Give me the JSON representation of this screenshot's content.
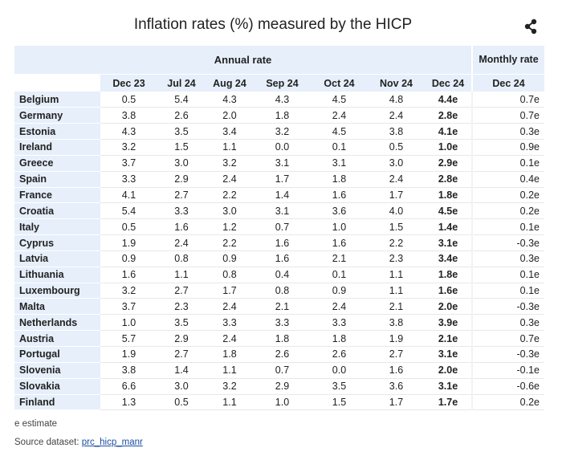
{
  "title": "Inflation rates (%) measured by the HICP",
  "share_icon": "share-icon",
  "header": {
    "annual_rate": "Annual rate",
    "monthly_rate": "Monthly rate",
    "columns": [
      "Dec 23",
      "Jul 24",
      "Aug 24",
      "Sep 24",
      "Oct 24",
      "Nov 24",
      "Dec 24"
    ],
    "monthly_column": "Dec 24"
  },
  "rows": [
    {
      "country": "Belgium",
      "values": [
        "0.5",
        "5.4",
        "4.3",
        "4.3",
        "4.5",
        "4.8",
        "4.4e"
      ],
      "monthly": "0.7e"
    },
    {
      "country": "Germany",
      "values": [
        "3.8",
        "2.6",
        "2.0",
        "1.8",
        "2.4",
        "2.4",
        "2.8e"
      ],
      "monthly": "0.7e"
    },
    {
      "country": "Estonia",
      "values": [
        "4.3",
        "3.5",
        "3.4",
        "3.2",
        "4.5",
        "3.8",
        "4.1e"
      ],
      "monthly": "0.3e"
    },
    {
      "country": "Ireland",
      "values": [
        "3.2",
        "1.5",
        "1.1",
        "0.0",
        "0.1",
        "0.5",
        "1.0e"
      ],
      "monthly": "0.9e"
    },
    {
      "country": "Greece",
      "values": [
        "3.7",
        "3.0",
        "3.2",
        "3.1",
        "3.1",
        "3.0",
        "2.9e"
      ],
      "monthly": "0.1e"
    },
    {
      "country": "Spain",
      "values": [
        "3.3",
        "2.9",
        "2.4",
        "1.7",
        "1.8",
        "2.4",
        "2.8e"
      ],
      "monthly": "0.4e"
    },
    {
      "country": "France",
      "values": [
        "4.1",
        "2.7",
        "2.2",
        "1.4",
        "1.6",
        "1.7",
        "1.8e"
      ],
      "monthly": "0.2e"
    },
    {
      "country": "Croatia",
      "values": [
        "5.4",
        "3.3",
        "3.0",
        "3.1",
        "3.6",
        "4.0",
        "4.5e"
      ],
      "monthly": "0.2e"
    },
    {
      "country": "Italy",
      "values": [
        "0.5",
        "1.6",
        "1.2",
        "0.7",
        "1.0",
        "1.5",
        "1.4e"
      ],
      "monthly": "0.1e"
    },
    {
      "country": "Cyprus",
      "values": [
        "1.9",
        "2.4",
        "2.2",
        "1.6",
        "1.6",
        "2.2",
        "3.1e"
      ],
      "monthly": "-0.3e"
    },
    {
      "country": "Latvia",
      "values": [
        "0.9",
        "0.8",
        "0.9",
        "1.6",
        "2.1",
        "2.3",
        "3.4e"
      ],
      "monthly": "0.3e"
    },
    {
      "country": "Lithuania",
      "values": [
        "1.6",
        "1.1",
        "0.8",
        "0.4",
        "0.1",
        "1.1",
        "1.8e"
      ],
      "monthly": "0.1e"
    },
    {
      "country": "Luxembourg",
      "values": [
        "3.2",
        "2.7",
        "1.7",
        "0.8",
        "0.9",
        "1.1",
        "1.6e"
      ],
      "monthly": "0.1e"
    },
    {
      "country": "Malta",
      "values": [
        "3.7",
        "2.3",
        "2.4",
        "2.1",
        "2.4",
        "2.1",
        "2.0e"
      ],
      "monthly": "-0.3e"
    },
    {
      "country": "Netherlands",
      "values": [
        "1.0",
        "3.5",
        "3.3",
        "3.3",
        "3.3",
        "3.8",
        "3.9e"
      ],
      "monthly": "0.3e"
    },
    {
      "country": "Austria",
      "values": [
        "5.7",
        "2.9",
        "2.4",
        "1.8",
        "1.8",
        "1.9",
        "2.1e"
      ],
      "monthly": "0.7e"
    },
    {
      "country": "Portugal",
      "values": [
        "1.9",
        "2.7",
        "1.8",
        "2.6",
        "2.6",
        "2.7",
        "3.1e"
      ],
      "monthly": "-0.3e"
    },
    {
      "country": "Slovenia",
      "values": [
        "3.8",
        "1.4",
        "1.1",
        "0.7",
        "0.0",
        "1.6",
        "2.0e"
      ],
      "monthly": "-0.1e"
    },
    {
      "country": "Slovakia",
      "values": [
        "6.6",
        "3.0",
        "3.2",
        "2.9",
        "3.5",
        "3.6",
        "3.1e"
      ],
      "monthly": "-0.6e"
    },
    {
      "country": "Finland",
      "values": [
        "1.3",
        "0.5",
        "1.1",
        "1.0",
        "1.5",
        "1.7",
        "1.7e"
      ],
      "monthly": "0.2e"
    }
  ],
  "footnote": "e estimate",
  "source": {
    "label": "Source dataset:",
    "link": "prc_hicp_manr"
  },
  "colors": {
    "header_bg": "#e6effa",
    "link": "#1a4ea3"
  }
}
